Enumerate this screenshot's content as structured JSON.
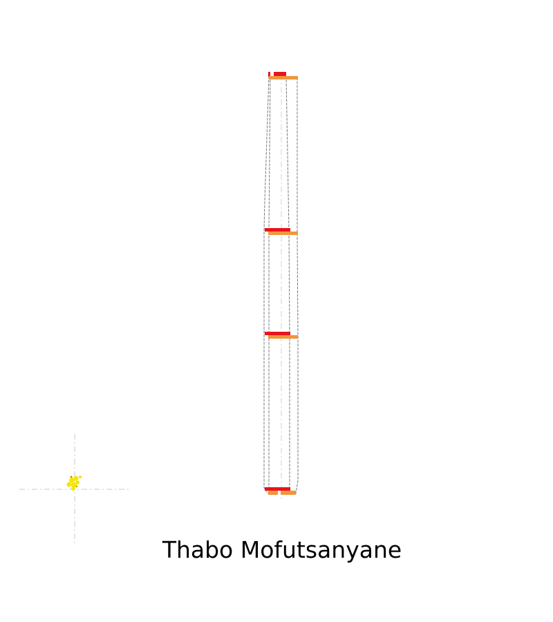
{
  "map": {
    "title": "Thabo Mofutsanyane"
  },
  "colors": {
    "outline": "#7a7a7a",
    "axis": "#c8c8c8",
    "bar_red": "#e8141c",
    "bar_orange": "#f0963c",
    "cluster_yellow": "#f5e60a",
    "cluster_dark": "#b0a000",
    "title": "#000000",
    "background": "#ffffff"
  }
}
